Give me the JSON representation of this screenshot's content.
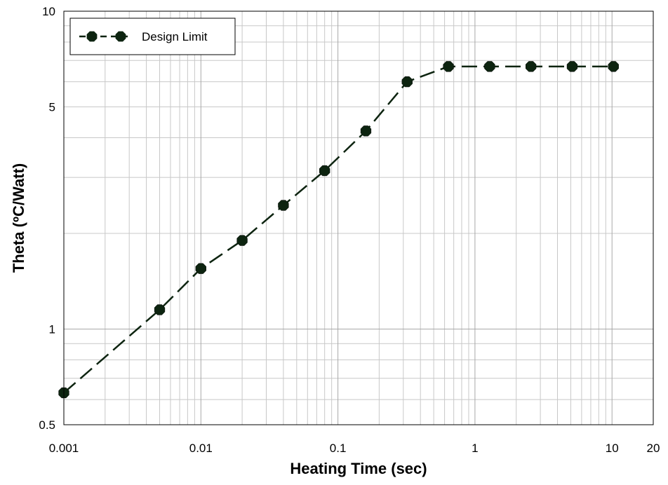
{
  "chart_data": {
    "type": "line",
    "title": "",
    "xlabel": "Heating Time (sec)",
    "ylabel": "Theta (ºC/Watt)",
    "xscale": "log",
    "yscale": "log",
    "xlim": [
      0.001,
      20
    ],
    "ylim": [
      0.5,
      10
    ],
    "grid": true,
    "legend_position": "top-left",
    "x_ticks": [
      0.001,
      0.01,
      0.1,
      1,
      10,
      20
    ],
    "x_tick_labels": [
      "0.001",
      "0.01",
      "0.1",
      "1",
      "10",
      "20"
    ],
    "y_ticks": [
      0.5,
      1,
      5,
      10
    ],
    "y_tick_labels": [
      "0.5",
      "1",
      "5",
      "10"
    ],
    "series": [
      {
        "name": "Design Limit",
        "color": "#0d2410",
        "line_style": "dashed",
        "marker": "octagon",
        "x": [
          0.001,
          0.005,
          0.01,
          0.02,
          0.04,
          0.08,
          0.16,
          0.32,
          0.64,
          1.28,
          2.56,
          5.12,
          10.24
        ],
        "y": [
          0.63,
          1.15,
          1.55,
          1.9,
          2.45,
          3.15,
          4.2,
          6.0,
          6.7,
          6.7,
          6.7,
          6.7,
          6.7
        ]
      }
    ]
  }
}
